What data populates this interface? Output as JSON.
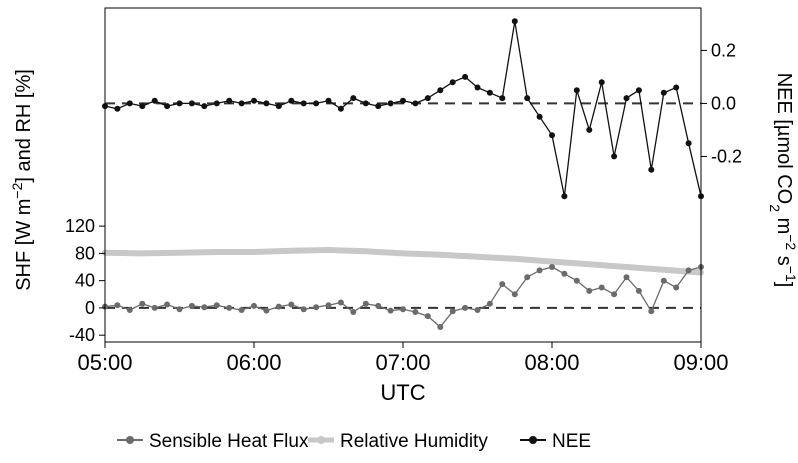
{
  "chart_data": {
    "type": "line",
    "x_unit": "UTC time",
    "xlabel": "UTC",
    "ylabel_left": "SHF [W m^-2] and RH [%]",
    "ylabel_right": "NEE [µmol CO2 m^-2 s^-1]",
    "x_ticks": [
      "05:00",
      "06:00",
      "07:00",
      "08:00",
      "09:00"
    ],
    "x_range": [
      "05:00",
      "09:00"
    ],
    "y_left_ticks": [
      -40,
      0,
      40,
      80,
      120
    ],
    "y_left_range": [
      -50,
      440
    ],
    "y_right_ticks": [
      0.2,
      0.0,
      -0.2
    ],
    "y_right_range": [
      -0.9,
      0.36
    ],
    "zero_reference_lines": [
      "Sensible Heat Flux at 0 W m^-2",
      "NEE at 0.0 µmol CO2 m^-2 s^-1"
    ],
    "legend": {
      "position": "bottom",
      "entries": [
        "Sensible Heat Flux",
        "Relative Humidity",
        "NEE"
      ]
    },
    "colors": {
      "shf": "#6b6b6b",
      "rh": "#c8c8c8",
      "nee": "#111111",
      "zero_line": "#333333"
    },
    "series": [
      {
        "name": "Sensible Heat Flux",
        "axis": "left",
        "x": [
          "05:00",
          "05:05",
          "05:10",
          "05:15",
          "05:20",
          "05:25",
          "05:30",
          "05:35",
          "05:40",
          "05:45",
          "05:50",
          "05:55",
          "06:00",
          "06:05",
          "06:10",
          "06:15",
          "06:20",
          "06:25",
          "06:30",
          "06:35",
          "06:40",
          "06:45",
          "06:50",
          "06:55",
          "07:00",
          "07:05",
          "07:10",
          "07:15",
          "07:20",
          "07:25",
          "07:30",
          "07:35",
          "07:40",
          "07:45",
          "07:50",
          "07:55",
          "08:00",
          "08:05",
          "08:10",
          "08:15",
          "08:20",
          "08:25",
          "08:30",
          "08:35",
          "08:40",
          "08:45",
          "08:50",
          "08:55",
          "09:00"
        ],
        "values": [
          2,
          4,
          -3,
          6,
          0,
          5,
          -2,
          3,
          1,
          4,
          0,
          -3,
          3,
          -4,
          2,
          5,
          -2,
          1,
          4,
          8,
          -6,
          6,
          3,
          -4,
          -2,
          -6,
          -12,
          -28,
          -5,
          0,
          -3,
          6,
          35,
          20,
          45,
          55,
          60,
          50,
          40,
          25,
          30,
          20,
          45,
          25,
          -5,
          40,
          30,
          55,
          60
        ]
      },
      {
        "name": "Relative Humidity",
        "axis": "left",
        "x": [
          "05:00",
          "05:15",
          "05:30",
          "05:45",
          "06:00",
          "06:15",
          "06:30",
          "06:45",
          "07:00",
          "07:15",
          "07:30",
          "07:45",
          "08:00",
          "08:15",
          "08:30",
          "08:45",
          "09:00"
        ],
        "values": [
          81,
          80,
          81,
          82,
          82,
          84,
          85,
          83,
          80,
          78,
          75,
          72,
          68,
          64,
          60,
          56,
          52
        ]
      },
      {
        "name": "NEE",
        "axis": "right",
        "x": [
          "05:00",
          "05:05",
          "05:10",
          "05:15",
          "05:20",
          "05:25",
          "05:30",
          "05:35",
          "05:40",
          "05:45",
          "05:50",
          "05:55",
          "06:00",
          "06:05",
          "06:10",
          "06:15",
          "06:20",
          "06:25",
          "06:30",
          "06:35",
          "06:40",
          "06:45",
          "06:50",
          "06:55",
          "07:00",
          "07:05",
          "07:10",
          "07:15",
          "07:20",
          "07:25",
          "07:30",
          "07:35",
          "07:40",
          "07:45",
          "07:50",
          "07:55",
          "08:00",
          "08:05",
          "08:10",
          "08:15",
          "08:20",
          "08:25",
          "08:30",
          "08:35",
          "08:40",
          "08:45",
          "08:50",
          "08:55",
          "09:00"
        ],
        "values": [
          -0.01,
          -0.02,
          0.0,
          -0.01,
          0.01,
          -0.01,
          0.0,
          0.0,
          -0.01,
          0.0,
          0.01,
          0.0,
          0.01,
          0.0,
          -0.01,
          0.01,
          0.0,
          0.0,
          0.01,
          -0.02,
          0.02,
          0.0,
          -0.01,
          0.0,
          0.01,
          0.0,
          0.02,
          0.05,
          0.08,
          0.1,
          0.06,
          0.04,
          0.02,
          0.31,
          0.02,
          -0.05,
          -0.12,
          -0.35,
          0.05,
          -0.1,
          0.08,
          -0.2,
          0.02,
          0.05,
          -0.25,
          0.04,
          0.06,
          -0.15,
          -0.35
        ]
      }
    ]
  }
}
